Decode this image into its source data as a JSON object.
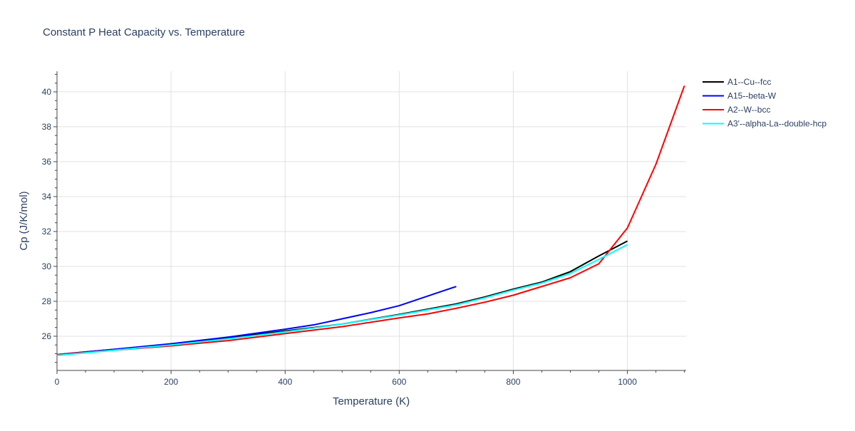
{
  "chart_data": {
    "type": "line",
    "title": "Constant P Heat Capacity vs. Temperature",
    "xlabel": "Temperature (K)",
    "ylabel": "Cp (J/K/mol)",
    "xlim": [
      0,
      1103
    ],
    "ylim": [
      24.04,
      41.18
    ],
    "xticks": [
      0,
      200,
      400,
      600,
      800,
      1000
    ],
    "yticks": [
      26,
      28,
      30,
      32,
      34,
      36,
      38,
      40
    ],
    "grid": true,
    "legend_position": "top-right",
    "series": [
      {
        "name": "A1--Cu--fcc",
        "color": "#000000",
        "x": [
          0,
          100,
          200,
          300,
          400,
          500,
          600,
          700,
          750,
          800,
          850,
          900,
          950,
          1000
        ],
        "y": [
          24.95,
          25.25,
          25.55,
          25.9,
          26.3,
          26.7,
          27.25,
          27.85,
          28.25,
          28.7,
          29.1,
          29.7,
          30.6,
          31.45
        ]
      },
      {
        "name": "A15--beta-W",
        "color": "#0000ff",
        "x": [
          0,
          100,
          200,
          300,
          400,
          450,
          500,
          550,
          600,
          650,
          700
        ],
        "y": [
          24.95,
          25.25,
          25.57,
          25.95,
          26.4,
          26.65,
          27.0,
          27.35,
          27.75,
          28.3,
          28.85
        ]
      },
      {
        "name": "A2--W--bcc",
        "color": "#ff0000",
        "x": [
          0,
          100,
          200,
          300,
          400,
          500,
          600,
          650,
          700,
          750,
          800,
          850,
          900,
          950,
          1000,
          1050,
          1100
        ],
        "y": [
          24.95,
          25.2,
          25.45,
          25.75,
          26.15,
          26.55,
          27.05,
          27.28,
          27.6,
          27.95,
          28.35,
          28.85,
          29.35,
          30.15,
          32.2,
          35.85,
          40.35
        ]
      },
      {
        "name": "A3'--alpha-La--double-hcp",
        "color": "#00ffff",
        "x": [
          0,
          100,
          200,
          300,
          400,
          500,
          600,
          700,
          750,
          800,
          850,
          900,
          950,
          1000
        ],
        "y": [
          24.9,
          25.2,
          25.5,
          25.85,
          26.25,
          26.7,
          27.22,
          27.8,
          28.2,
          28.65,
          29.05,
          29.6,
          30.4,
          31.25
        ]
      }
    ]
  }
}
